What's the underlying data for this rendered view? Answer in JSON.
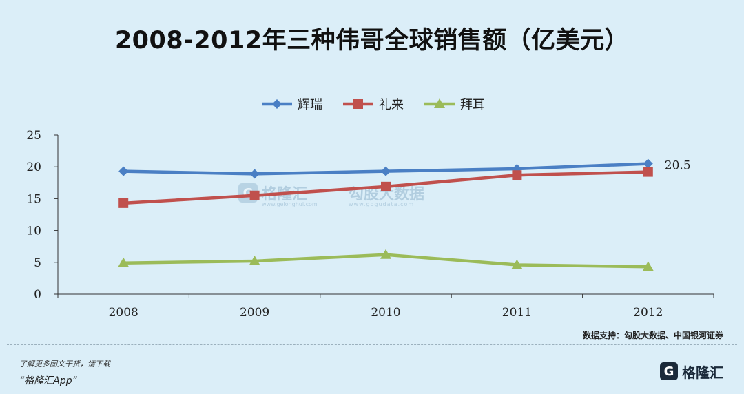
{
  "chart_data": {
    "type": "line",
    "title": "2008-2012年三种伟哥全球销售额（亿美元）",
    "categories": [
      "2008",
      "2009",
      "2010",
      "2011",
      "2012"
    ],
    "series": [
      {
        "name": "辉瑞",
        "values": [
          19.3,
          18.9,
          19.3,
          19.7,
          20.5
        ],
        "color": "#4a7fc4",
        "marker": "diamond"
      },
      {
        "name": "礼来",
        "values": [
          14.3,
          15.5,
          16.9,
          18.7,
          19.2
        ],
        "color": "#c0504d",
        "marker": "square"
      },
      {
        "name": "拜耳",
        "values": [
          4.9,
          5.2,
          6.2,
          4.6,
          4.3
        ],
        "color": "#9bbb59",
        "marker": "triangle"
      }
    ],
    "ylim": [
      0,
      25
    ],
    "yticks": [
      0,
      5,
      10,
      15,
      20,
      25
    ],
    "annotation": "20.5",
    "legend_position": "top",
    "grid": false
  },
  "source": "数据支持：勾股大数据、中国银河证券",
  "footer": {
    "line1": "了解更多图文干货，请下载",
    "line2": "“格隆汇App”"
  },
  "brand": {
    "name": "格隆汇",
    "mark": "G",
    "icon": "gelonghui-logo-icon"
  },
  "watermark": {
    "name": "格隆汇",
    "url": "www.gelonghui.com",
    "name2": "勾股大数据",
    "url2": "www.gogudata.com"
  }
}
